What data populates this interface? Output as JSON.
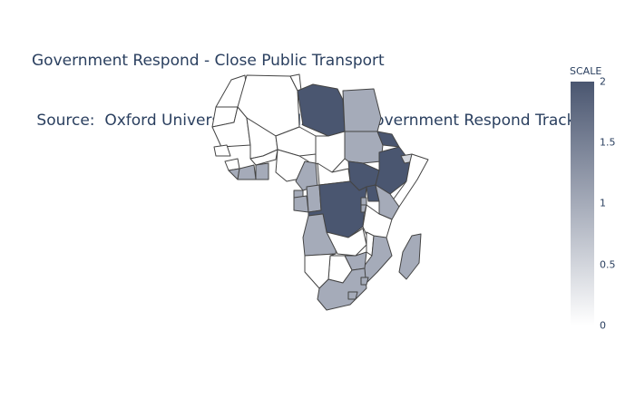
{
  "title": {
    "line1": "Government Respond - Close Public Transport",
    "line2": " Source:  Oxford University CORONAVIRUS Government Respond Tracker"
  },
  "colorbar": {
    "title": "SCALE",
    "ticks": [
      "2",
      "1.5",
      "1",
      "0.5",
      "0"
    ],
    "colors": {
      "max": "#4a5670",
      "mid": "#a5abb9",
      "min": "#ffffff"
    }
  },
  "map": {
    "region": "africa",
    "levels": {
      "Libya": 2,
      "Egypt": 1,
      "Sudan": 1,
      "South Sudan": 2,
      "Ethiopia": 2,
      "Eritrea": 2,
      "Djibouti": 0.5,
      "Democratic Republic of the Congo": 2,
      "Uganda": 2,
      "Central African Republic": 0,
      "Kenya": 1,
      "Somalia": 0,
      "Tanzania": 0,
      "Rwanda": 1,
      "Burundi": 1,
      "Angola": 1,
      "Zambia": 0,
      "Malawi": 0,
      "Mozambique": 1,
      "Zimbabwe": 1,
      "Botswana": 0,
      "Namibia": 0,
      "South Africa": 1,
      "Lesotho": 1,
      "Swaziland": 1,
      "Madagascar": 1,
      "Ghana": 1,
      "Ivory Coast": 1,
      "Liberia": 1,
      "Cameroon": 1,
      "Gabon": 1,
      "Republic of the Congo": 1,
      "Equatorial Guinea": 1
    }
  }
}
